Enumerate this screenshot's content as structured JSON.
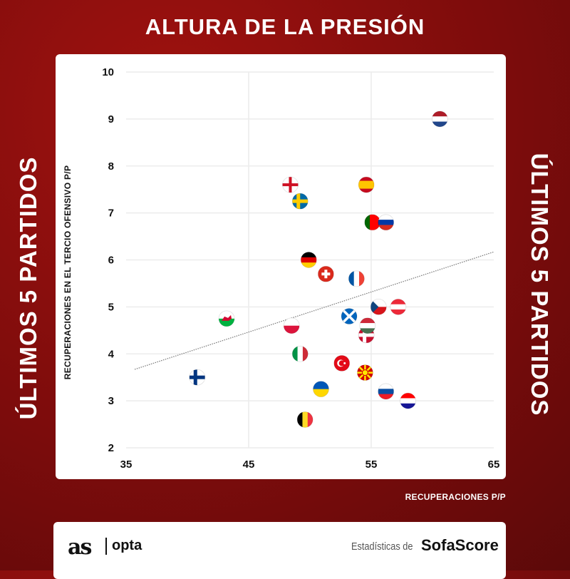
{
  "header": {
    "title": "ALTURA DE LA PRESIÓN",
    "side_left": "ÚLTIMOS 5 PARTIDOS",
    "side_right": "ÚLTIMOS 5 PARTIDOS"
  },
  "footer": {
    "logo_as": "as",
    "logo_opta": "opta",
    "stats_text": "Estadísticas de",
    "logo_sofascore": "SofaScore"
  },
  "chart_data": {
    "type": "scatter",
    "title": "ALTURA DE LA PRESIÓN",
    "xlabel": "RECUPERACIONES P/P",
    "ylabel": "RECUPERACIONES EN EL TERCIO OFENSIVO P/P",
    "xlim": [
      35,
      65
    ],
    "ylim": [
      2,
      10
    ],
    "xticks": [
      "35",
      "45",
      "55",
      "65"
    ],
    "yticks": [
      "2",
      "3",
      "4",
      "5",
      "6",
      "7",
      "8",
      "9",
      "10"
    ],
    "grid": true,
    "trendline": {
      "x": [
        35.7,
        65
      ],
      "y": [
        3.67,
        6.17
      ]
    },
    "points": [
      {
        "flag": "netherlands",
        "x": 60.6,
        "y": 9.0
      },
      {
        "flag": "england",
        "x": 48.4,
        "y": 7.6
      },
      {
        "flag": "spain",
        "x": 54.6,
        "y": 7.6
      },
      {
        "flag": "sweden",
        "x": 49.2,
        "y": 7.25
      },
      {
        "flag": "portugal",
        "x": 55.1,
        "y": 6.8
      },
      {
        "flag": "russia",
        "x": 56.2,
        "y": 6.8
      },
      {
        "flag": "germany",
        "x": 49.9,
        "y": 6.0
      },
      {
        "flag": "switzerland",
        "x": 51.3,
        "y": 5.7
      },
      {
        "flag": "france",
        "x": 53.8,
        "y": 5.6
      },
      {
        "flag": "czech-republic",
        "x": 55.6,
        "y": 5.0
      },
      {
        "flag": "austria",
        "x": 57.2,
        "y": 5.0
      },
      {
        "flag": "wales",
        "x": 43.2,
        "y": 4.75
      },
      {
        "flag": "scotland",
        "x": 53.2,
        "y": 4.8
      },
      {
        "flag": "poland",
        "x": 48.5,
        "y": 4.6
      },
      {
        "flag": "denmark",
        "x": 54.6,
        "y": 4.4
      },
      {
        "flag": "hungary",
        "x": 54.7,
        "y": 4.6
      },
      {
        "flag": "italy",
        "x": 49.2,
        "y": 4.0
      },
      {
        "flag": "turkey",
        "x": 52.6,
        "y": 3.8
      },
      {
        "flag": "north-macedonia",
        "x": 54.5,
        "y": 3.6
      },
      {
        "flag": "finland",
        "x": 40.8,
        "y": 3.5
      },
      {
        "flag": "ukraine",
        "x": 50.9,
        "y": 3.25
      },
      {
        "flag": "slovakia",
        "x": 56.2,
        "y": 3.2
      },
      {
        "flag": "croatia",
        "x": 58.0,
        "y": 3.0
      },
      {
        "flag": "belgium",
        "x": 49.6,
        "y": 2.6
      }
    ]
  }
}
